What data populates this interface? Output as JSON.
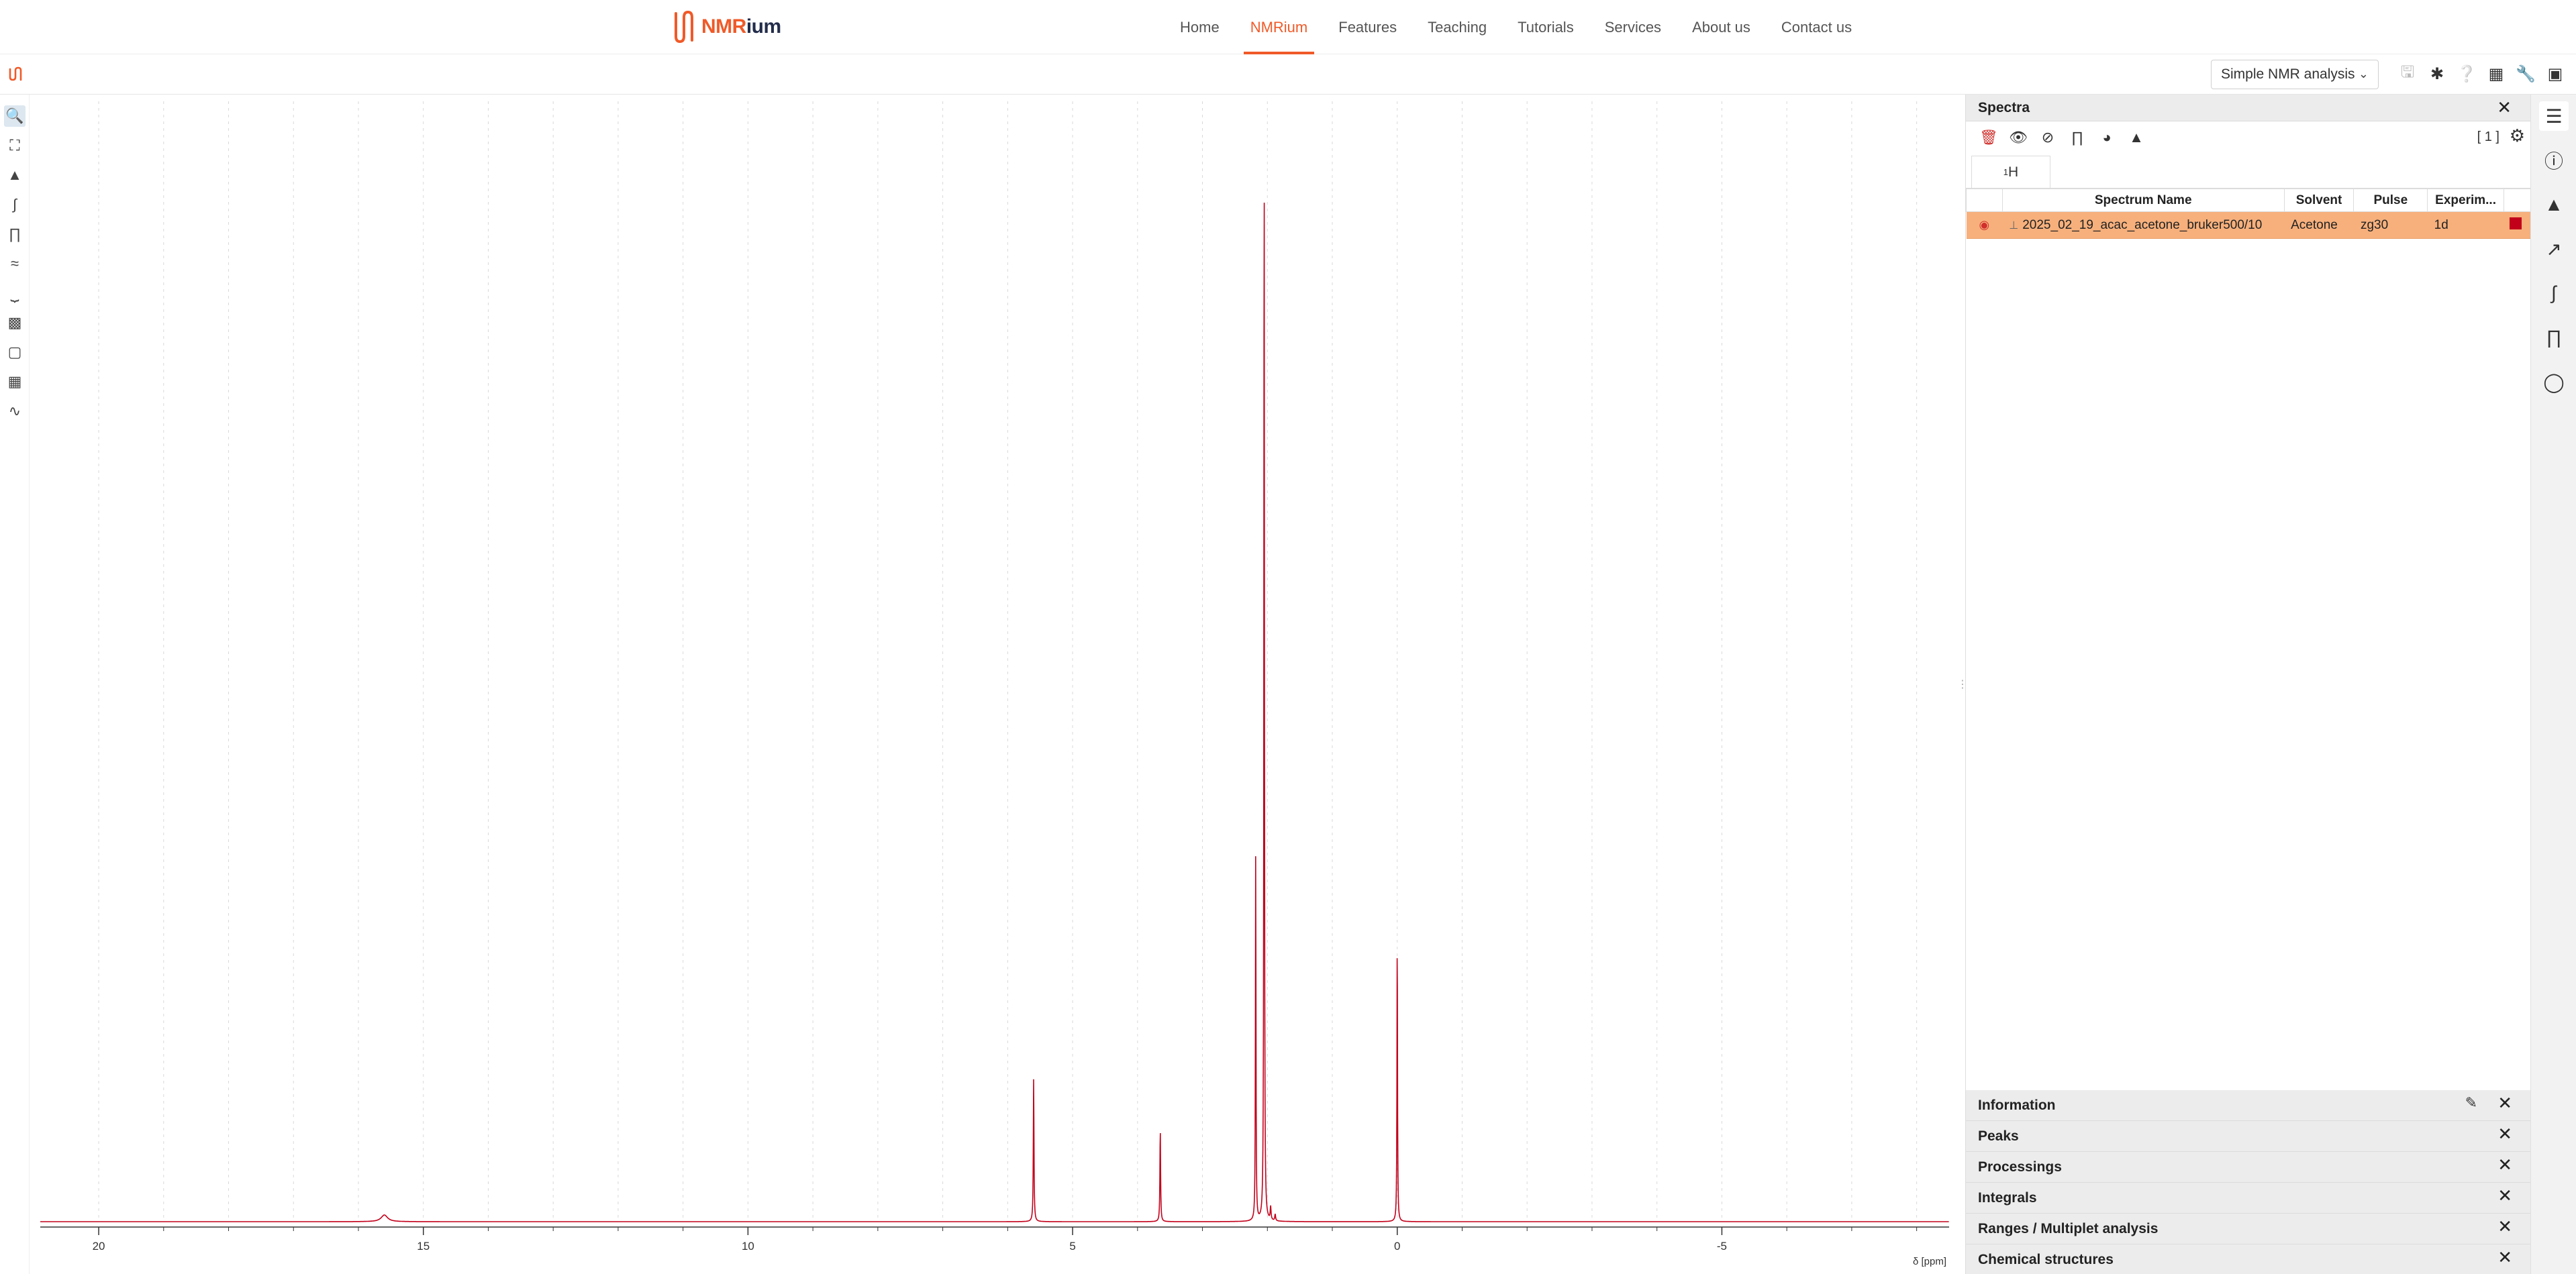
{
  "site": {
    "logo_text_a": "NMR",
    "logo_text_b": "ium",
    "nav": [
      {
        "label": "Home",
        "active": false
      },
      {
        "label": "NMRium",
        "active": true
      },
      {
        "label": "Features",
        "active": false
      },
      {
        "label": "Teaching",
        "active": false
      },
      {
        "label": "Tutorials",
        "active": false
      },
      {
        "label": "Services",
        "active": false
      },
      {
        "label": "About us",
        "active": false
      },
      {
        "label": "Contact us",
        "active": false
      }
    ]
  },
  "app": {
    "workspace": "Simple NMR analysis",
    "icons": [
      "save-icon",
      "bug-icon",
      "help-icon",
      "export-icon",
      "wrench-icon",
      "window-icon"
    ]
  },
  "tools": [
    "zoom-icon",
    "fullscreen-icon",
    "peak-picking-icon",
    "integral-icon",
    "multiplet-analysis-icon",
    "zero-filling-icon",
    "baseline-icon",
    "phase-correction-icon",
    "export-icon",
    "compare-icon",
    "fft-icon"
  ],
  "spectra_panel": {
    "title": "Spectra",
    "count": "[ 1 ]",
    "nucleus_tab": {
      "sup": "1",
      "label": "H"
    },
    "columns": [
      "Spectrum Name",
      "Solvent",
      "Pulse",
      "Experim..."
    ],
    "rows": [
      {
        "name": "2025_02_19_acac_acetone_bruker500/10",
        "solvent": "Acetone",
        "pulse": "zg30",
        "experiment": "1d",
        "color": "#c2001a"
      }
    ]
  },
  "panels": [
    {
      "title": "Information",
      "editable": true
    },
    {
      "title": "Peaks",
      "editable": false
    },
    {
      "title": "Processings",
      "editable": false
    },
    {
      "title": "Integrals",
      "editable": false
    },
    {
      "title": "Ranges / Multiplet analysis",
      "editable": false
    },
    {
      "title": "Chemical structures",
      "editable": false
    }
  ],
  "rail": [
    "table-icon",
    "info-icon",
    "peaks-icon",
    "chart-icon",
    "integral-icon",
    "multiplet-icon",
    "molecule-icon"
  ],
  "chart_data": {
    "type": "line",
    "xlabel": "δ [ppm]",
    "x_reversed": true,
    "xlim": [
      20.9,
      -8.5
    ],
    "x_ticks": [
      20,
      15,
      10,
      5,
      0,
      -5
    ],
    "y_axis_visible": false,
    "grid": "vertical dashed",
    "line_color": "#c2001a",
    "series": [
      {
        "peaks": [
          {
            "ppm": 15.6,
            "height": 0.006,
            "width": 0.12
          },
          {
            "ppm": 5.6,
            "height": 0.128,
            "width": 0.012
          },
          {
            "ppm": 3.65,
            "height": 0.083,
            "width": 0.012
          },
          {
            "ppm": 2.18,
            "height": 0.333,
            "width": 0.01
          },
          {
            "ppm": 2.05,
            "height": 1.0,
            "width": 0.01
          },
          {
            "ppm": 1.95,
            "height": 0.012,
            "width": 0.015
          },
          {
            "ppm": 1.88,
            "height": 0.006,
            "width": 0.015
          },
          {
            "ppm": 0.0,
            "height": 0.26,
            "width": 0.01
          }
        ]
      }
    ]
  }
}
